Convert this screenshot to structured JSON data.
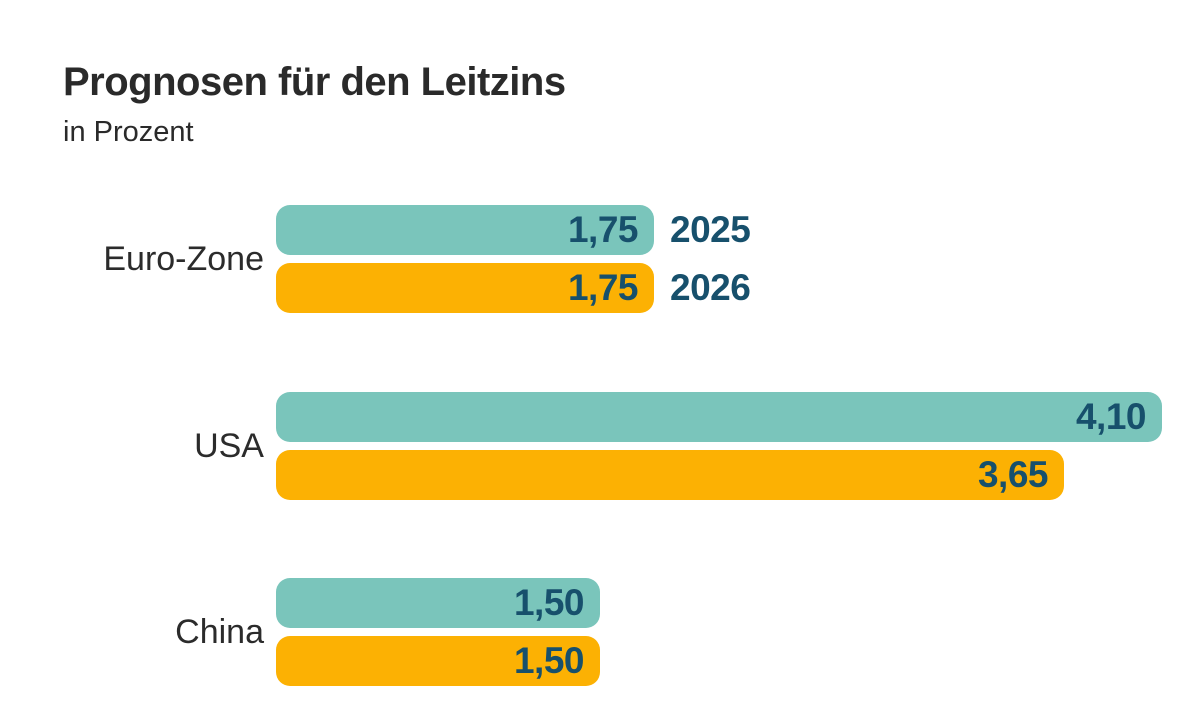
{
  "header": {
    "title": "Prognosen für den Leitzins",
    "subtitle": "in Prozent"
  },
  "colors": {
    "background": "#ffffff",
    "title_text": "#2a2a2a",
    "category_text": "#2b2b2b",
    "value_text": "#17506c",
    "series_2025": "#7ac5bb",
    "series_2026": "#fcb103"
  },
  "chart_data": {
    "type": "bar",
    "orientation": "horizontal",
    "title": "Prognosen für den Leitzins",
    "subtitle": "in Prozent",
    "unit": "Prozent",
    "categories": [
      "Euro-Zone",
      "USA",
      "China"
    ],
    "series": [
      {
        "name": "2025",
        "color": "#7ac5bb",
        "values": [
          1.75,
          4.1,
          1.5
        ],
        "value_labels": [
          "1,75",
          "4,10",
          "1,50"
        ]
      },
      {
        "name": "2026",
        "color": "#fcb103",
        "values": [
          1.75,
          3.65,
          1.5
        ],
        "value_labels": [
          "1,75",
          "3,65",
          "1,50"
        ]
      }
    ],
    "xlim": [
      0,
      4.1
    ],
    "grid": false,
    "legend_position": "inline-right-of-first-group",
    "value_label_position": "inside-right"
  }
}
